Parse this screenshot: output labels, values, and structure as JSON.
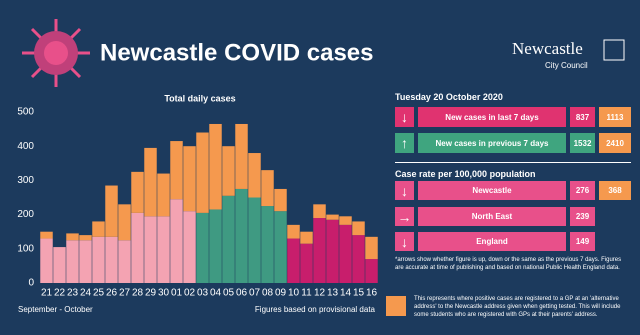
{
  "header": {
    "title": "Newcastle COVID cases",
    "logo_name": "Newcastle",
    "logo_sub": "City Council"
  },
  "chart_data": {
    "type": "bar",
    "stacked": true,
    "title": "Total daily cases",
    "x_label": "September - October",
    "note": "Figures based on provisional data",
    "categories": [
      "21",
      "22",
      "23",
      "24",
      "25",
      "26",
      "27",
      "28",
      "29",
      "30",
      "01",
      "02",
      "03",
      "04",
      "05",
      "06",
      "07",
      "08",
      "09",
      "10",
      "11",
      "12",
      "13",
      "14",
      "15",
      "16"
    ],
    "series": [
      {
        "color": "#f4a3b2",
        "values": [
          130,
          105,
          125,
          125,
          135,
          135,
          125,
          205,
          195,
          195,
          245,
          210,
          null,
          null,
          null,
          null,
          null,
          null,
          null,
          null,
          null,
          null,
          null,
          null,
          null,
          null
        ]
      },
      {
        "color": "#3f9a82",
        "values": [
          null,
          null,
          null,
          null,
          null,
          null,
          null,
          null,
          null,
          null,
          null,
          null,
          205,
          215,
          255,
          275,
          250,
          225,
          210,
          null,
          null,
          null,
          null,
          null,
          null,
          null
        ]
      },
      {
        "color": "#c81e6c",
        "values": [
          null,
          null,
          null,
          null,
          null,
          null,
          null,
          null,
          null,
          null,
          null,
          null,
          null,
          null,
          null,
          null,
          null,
          null,
          null,
          130,
          115,
          190,
          185,
          170,
          140,
          70
        ]
      },
      {
        "color": "#f5994e",
        "values": [
          20,
          0,
          20,
          15,
          45,
          150,
          105,
          120,
          200,
          125,
          170,
          190,
          235,
          250,
          145,
          190,
          130,
          105,
          65,
          40,
          35,
          40,
          15,
          25,
          40,
          65
        ]
      }
    ],
    "ylim": [
      0,
      500
    ],
    "yticks": [
      0,
      100,
      200,
      300,
      400,
      500
    ],
    "grid": false
  },
  "panel": {
    "date": "Tuesday 20 October 2020",
    "new_cases": [
      {
        "label": "New cases in last 7 days",
        "value": 837,
        "alt_value": 1113
      },
      {
        "label": "New cases in previous 7 days",
        "value": 1532,
        "alt_value": 2410
      }
    ],
    "rate_title": "Case rate per 100,000 population",
    "rates": [
      {
        "label": "Newcastle",
        "value": 276,
        "alt_value": 368
      },
      {
        "label": "North East",
        "value": 239
      },
      {
        "label": "England",
        "value": 149
      }
    ],
    "footnote": "*arrows show whether figure is up, down or the same as the previous 7 days. Figures are accurate at time of publishing and based on national Public Health England data.",
    "legend_note": "This represents where positive cases are registered to a GP at an 'alternative address' to the Newcastle address given when getting tested. This will include some students who are registered with GPs at their parents' address."
  }
}
